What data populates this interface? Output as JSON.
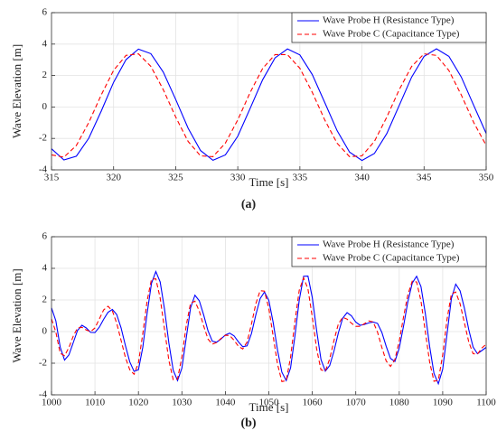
{
  "chart_data": [
    {
      "type": "line",
      "xlabel": "Time [s]",
      "ylabel": "Wave Elevation [m]",
      "caption": "(a)",
      "xlim": [
        315,
        350
      ],
      "xticks": [
        315,
        320,
        325,
        330,
        335,
        340,
        345,
        350
      ],
      "ylim": [
        -4,
        6
      ],
      "yticks": [
        -4,
        -2,
        0,
        2,
        4,
        6
      ],
      "grid": true,
      "legend": "upper right",
      "x": [
        315,
        316,
        317,
        318,
        319,
        320,
        321,
        322,
        323,
        324,
        325,
        326,
        327,
        328,
        329,
        330,
        331,
        332,
        333,
        334,
        335,
        336,
        337,
        338,
        339,
        340,
        341,
        342,
        343,
        344,
        345,
        346,
        347,
        348,
        349,
        350
      ],
      "series": [
        {
          "name": "Wave Probe H (Resistance Type)",
          "color": "#0000ff",
          "dash": false,
          "values": [
            -2.66,
            -3.37,
            -3.13,
            -1.99,
            -0.27,
            1.57,
            3.01,
            3.68,
            3.39,
            2.22,
            0.48,
            -1.35,
            -2.77,
            -3.39,
            -3.05,
            -1.86,
            -0.08,
            1.73,
            3.12,
            3.69,
            3.31,
            2.06,
            0.29,
            -1.51,
            -2.87,
            -3.4,
            -2.96,
            -1.69,
            0.1,
            1.9,
            3.22,
            3.7,
            3.22,
            1.9,
            0.1,
            -1.68
          ]
        },
        {
          "name": "Wave Probe C (Capacitance Type)",
          "color": "#ff0000",
          "dash": true,
          "values": [
            -3.05,
            -3.19,
            -2.45,
            -0.99,
            0.76,
            2.33,
            3.28,
            3.38,
            2.58,
            1.1,
            -0.64,
            -2.19,
            -3.11,
            -3.16,
            -2.3,
            -0.82,
            0.93,
            2.45,
            3.33,
            3.33,
            2.46,
            0.93,
            -0.82,
            -2.31,
            -3.16,
            -3.11,
            -2.19,
            -0.64,
            1.1,
            2.58,
            3.38,
            3.28,
            2.32,
            0.76,
            -0.99,
            -2.44
          ]
        }
      ]
    },
    {
      "type": "line",
      "xlabel": "Time [s]",
      "ylabel": "Wave Elevation [m]",
      "caption": "(b)",
      "xlim": [
        1000,
        1100
      ],
      "xticks": [
        1000,
        1010,
        1020,
        1030,
        1040,
        1050,
        1060,
        1070,
        1080,
        1090,
        1100
      ],
      "ylim": [
        -4,
        6
      ],
      "yticks": [
        -4,
        -2,
        0,
        2,
        4,
        6
      ],
      "grid": true,
      "legend": "upper right",
      "x": [
        1000,
        1001,
        1002,
        1003,
        1004,
        1005,
        1006,
        1007,
        1008,
        1009,
        1010,
        1011,
        1012,
        1013,
        1014,
        1015,
        1016,
        1017,
        1018,
        1019,
        1020,
        1021,
        1022,
        1023,
        1024,
        1025,
        1026,
        1027,
        1028,
        1029,
        1030,
        1031,
        1032,
        1033,
        1034,
        1035,
        1036,
        1037,
        1038,
        1039,
        1040,
        1041,
        1042,
        1043,
        1044,
        1045,
        1046,
        1047,
        1048,
        1049,
        1050,
        1051,
        1052,
        1053,
        1054,
        1055,
        1056,
        1057,
        1058,
        1059,
        1060,
        1061,
        1062,
        1063,
        1064,
        1065,
        1066,
        1067,
        1068,
        1069,
        1070,
        1071,
        1072,
        1073,
        1074,
        1075,
        1076,
        1077,
        1078,
        1079,
        1080,
        1081,
        1082,
        1083,
        1084,
        1085,
        1086,
        1087,
        1088,
        1089,
        1090,
        1091,
        1092,
        1093,
        1094,
        1095,
        1096,
        1097,
        1098,
        1099,
        1100
      ],
      "series": [
        {
          "name": "Wave Probe H (Resistance Type)",
          "color": "#0000ff",
          "dash": false,
          "values": [
            1.5,
            0.68,
            -0.98,
            -1.8,
            -1.48,
            -0.7,
            0.08,
            0.4,
            0.23,
            -0.05,
            -0.06,
            0.28,
            0.78,
            1.22,
            1.4,
            1.08,
            0.24,
            -0.88,
            -1.91,
            -2.52,
            -2.41,
            -1.0,
            1.16,
            3.05,
            3.8,
            3.14,
            1.42,
            -0.72,
            -2.44,
            -3.1,
            -2.31,
            -0.4,
            1.51,
            2.3,
            1.95,
            1.06,
            0.05,
            -0.61,
            -0.67,
            -0.47,
            -0.21,
            -0.1,
            -0.27,
            -0.65,
            -0.96,
            -0.9,
            -0.13,
            1.05,
            2.09,
            2.5,
            1.97,
            0.57,
            -1.17,
            -2.57,
            -3.1,
            -2.3,
            -0.29,
            2.0,
            3.5,
            3.51,
            2.15,
            0.06,
            -1.77,
            -2.5,
            -2.15,
            -1.22,
            -0.08,
            0.85,
            1.2,
            1.0,
            0.6,
            0.4,
            0.45,
            0.55,
            0.6,
            0.52,
            -0.05,
            -0.93,
            -1.7,
            -1.89,
            -1.05,
            0.36,
            1.91,
            3.07,
            3.5,
            2.85,
            1.15,
            -0.95,
            -2.65,
            -3.3,
            -2.38,
            -0.15,
            2.08,
            3.0,
            2.58,
            1.48,
            0.12,
            -0.98,
            -1.4,
            -1.2,
            -1.0
          ]
        },
        {
          "name": "Wave Probe C (Capacitance Type)",
          "color": "#ff0000",
          "dash": true,
          "values": [
            0.8,
            -0.03,
            -1.37,
            -1.53,
            -1.01,
            -0.29,
            0.23,
            0.27,
            0.1,
            0.0,
            0.23,
            0.8,
            1.37,
            1.6,
            1.31,
            0.53,
            -0.55,
            -1.63,
            -2.41,
            -2.7,
            -1.97,
            -0.14,
            1.95,
            3.31,
            3.34,
            2.12,
            0.15,
            -1.82,
            -3.04,
            -3.0,
            -1.59,
            0.39,
            1.8,
            1.92,
            1.3,
            0.36,
            -0.47,
            -0.8,
            -0.69,
            -0.43,
            -0.23,
            -0.25,
            -0.55,
            -0.93,
            -1.1,
            -0.66,
            0.47,
            1.75,
            2.59,
            2.56,
            1.46,
            -0.3,
            -2.06,
            -3.16,
            -3.1,
            -1.63,
            0.63,
            2.62,
            3.4,
            2.7,
            0.92,
            -1.1,
            -2.42,
            -2.5,
            -1.73,
            -0.55,
            0.49,
            0.9,
            0.79,
            0.53,
            0.33,
            0.33,
            0.5,
            0.67,
            0.61,
            -0.03,
            -1.0,
            -1.86,
            -2.2,
            -1.77,
            -0.61,
            0.94,
            2.35,
            3.19,
            3.14,
            1.94,
            0.0,
            -1.94,
            -3.14,
            -3.08,
            -1.48,
            0.78,
            2.38,
            2.5,
            1.76,
            0.55,
            -0.66,
            -1.4,
            -1.43,
            -1.04,
            -0.8
          ]
        }
      ]
    }
  ]
}
